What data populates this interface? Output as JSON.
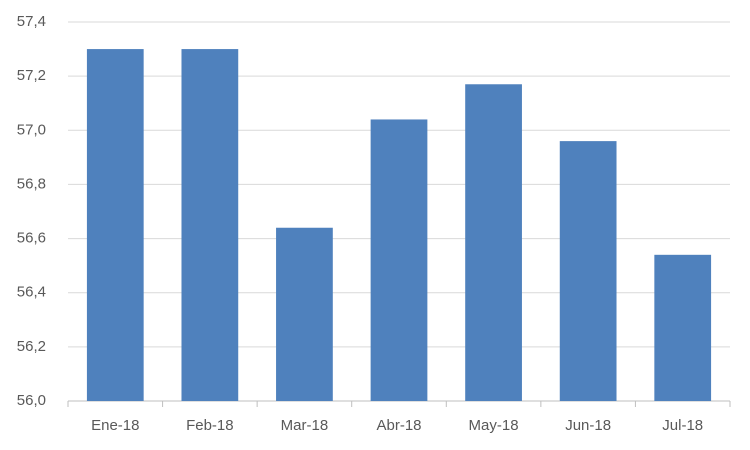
{
  "chart_data": {
    "type": "bar",
    "categories": [
      "Ene-18",
      "Feb-18",
      "Mar-18",
      "Abr-18",
      "May-18",
      "Jun-18",
      "Jul-18"
    ],
    "values": [
      57.3,
      57.3,
      56.64,
      57.04,
      57.17,
      56.96,
      56.54
    ],
    "color": "#4f81bd",
    "ylim": [
      56.0,
      57.4
    ],
    "yticks": [
      {
        "value": 56.0,
        "label": "56,0"
      },
      {
        "value": 56.2,
        "label": "56,2"
      },
      {
        "value": 56.4,
        "label": "56,4"
      },
      {
        "value": 56.6,
        "label": "56,6"
      },
      {
        "value": 56.8,
        "label": "56,8"
      },
      {
        "value": 57.0,
        "label": "57,0"
      },
      {
        "value": 57.2,
        "label": "57,2"
      },
      {
        "value": 57.4,
        "label": "57,4"
      }
    ],
    "grid": true
  }
}
